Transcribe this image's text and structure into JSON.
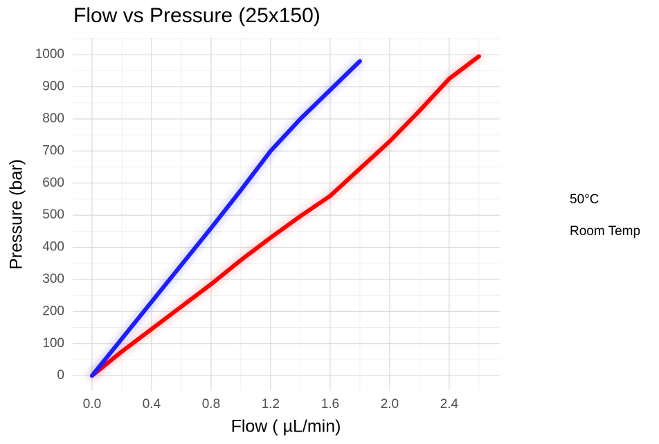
{
  "chart_data": {
    "type": "line",
    "title": "Flow vs Pressure (25x150)",
    "x_label": "Flow ( µL/min)",
    "y_label": "Pressure (bar)",
    "series": [
      {
        "name": "50°C",
        "color": "#ff0000",
        "x": [
          0,
          0.2,
          0.4,
          0.6,
          0.8,
          1.0,
          1.2,
          1.4,
          1.6,
          1.8,
          2.0,
          2.2,
          2.4,
          2.6
        ],
        "values": [
          0,
          75,
          145,
          215,
          285,
          360,
          430,
          497,
          560,
          645,
          730,
          825,
          925,
          995
        ]
      },
      {
        "name": "Room Temp",
        "color": "#1a1aff",
        "x": [
          0,
          0.2,
          0.4,
          0.6,
          0.8,
          1.0,
          1.2,
          1.4,
          1.6,
          1.8
        ],
        "values": [
          0,
          115,
          230,
          345,
          460,
          578,
          700,
          800,
          890,
          980
        ]
      }
    ],
    "xlim": [
      -0.13,
      2.74
    ],
    "ylim": [
      -47,
      1052
    ],
    "xticks": [
      {
        "value": 0,
        "label": "0.0"
      },
      0.4,
      0.8,
      1.2,
      1.6,
      {
        "value": 2,
        "label": "2.0"
      },
      2.4
    ],
    "yticks": [
      0,
      100,
      200,
      300,
      400,
      500,
      600,
      700,
      800,
      900,
      1000
    ],
    "grid": true,
    "legend": "right"
  }
}
